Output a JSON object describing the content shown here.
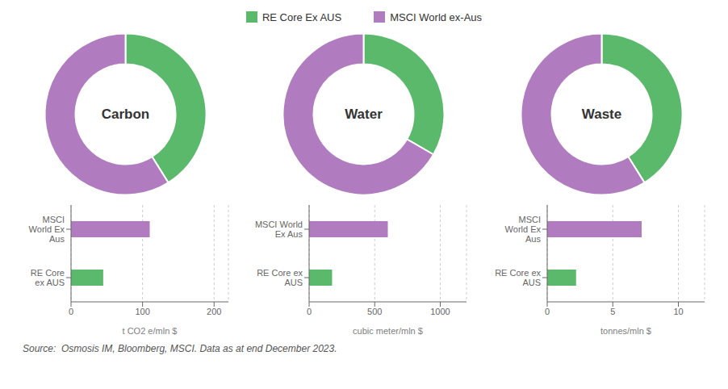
{
  "chart_data": [
    {
      "type": "donut",
      "title": "Carbon",
      "categories": [
        "RE Core Ex AUS",
        "MSCI World ex-Aus"
      ],
      "values": [
        148,
        212
      ],
      "colors": [
        "#5ab96b",
        "#b07bbf"
      ],
      "legend": "top"
    },
    {
      "type": "donut",
      "title": "Water",
      "categories": [
        "RE Core Ex AUS",
        "MSCI World ex-Aus"
      ],
      "values": [
        120,
        240
      ],
      "colors": [
        "#5ab96b",
        "#b07bbf"
      ]
    },
    {
      "type": "donut",
      "title": "Waste",
      "categories": [
        "RE Core Ex AUS",
        "MSCI World ex-Aus"
      ],
      "values": [
        148,
        212
      ],
      "colors": [
        "#5ab96b",
        "#b07bbf"
      ]
    },
    {
      "type": "bar",
      "orientation": "horizontal",
      "categories": [
        "RE Core\nex AUS",
        "MSCI\nWorld Ex\nAus"
      ],
      "values": [
        45,
        110
      ],
      "colors": [
        "#5ab96b",
        "#b07bbf"
      ],
      "xlabel": "t CO2 e/mln $",
      "xlim": [
        0,
        220
      ],
      "xticks": [
        0,
        100,
        200
      ],
      "grid": true
    },
    {
      "type": "bar",
      "orientation": "horizontal",
      "categories": [
        "RE Core ex\nAUS",
        "MSCI World\nEx Aus"
      ],
      "values": [
        175,
        600
      ],
      "colors": [
        "#5ab96b",
        "#b07bbf"
      ],
      "xlabel": "cubic meter/mln $",
      "xlim": [
        0,
        1200
      ],
      "xticks": [
        0,
        500,
        1000
      ],
      "grid": true
    },
    {
      "type": "bar",
      "orientation": "horizontal",
      "categories": [
        "RE Core ex\nAUS",
        "MSCI\nWorld Ex\nAus"
      ],
      "values": [
        2.2,
        7.2
      ],
      "colors": [
        "#5ab96b",
        "#b07bbf"
      ],
      "xlabel": "tonnes/mln $",
      "xlim": [
        0,
        12
      ],
      "xticks": [
        0,
        5,
        10
      ],
      "grid": true
    }
  ],
  "annotations": [
    "Source:  Osmosis IM, Bloomberg, MSCI. Data as at end December 2023."
  ]
}
